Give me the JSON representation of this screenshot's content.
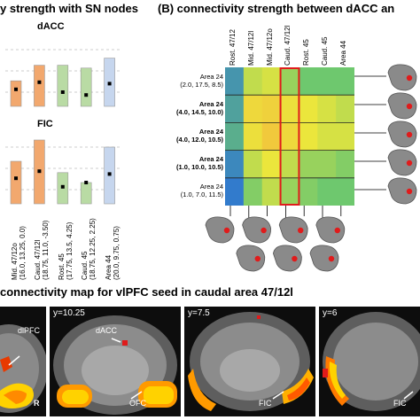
{
  "panel_a": {
    "title": "y strength with SN nodes",
    "charts": [
      {
        "label": "dACC",
        "bars": [
          0.18,
          0.29,
          0.29,
          0.27,
          0.34
        ],
        "dots": [
          0.12,
          0.17,
          0.1,
          0.08,
          0.16
        ]
      },
      {
        "label": "FIC",
        "bars": [
          0.3,
          0.45,
          0.22,
          0.15,
          0.4
        ],
        "dots": [
          0.18,
          0.23,
          0.12,
          0.15,
          0.21
        ]
      }
    ],
    "bar_colors": [
      "#f2a86e",
      "#f2a86e",
      "#b9dba4",
      "#b9dba4",
      "#c6d6ee"
    ],
    "categories": [
      "Mid. 47/12o\n(16.0, 13.25, 0.0)",
      "Caud. 47/12l\n(18.75, 11.0, -3.50)",
      "Rost. 45\n(17.75, 13.5, 4.25)",
      "Caud. 45\n(18.75, 12.25, 2.25)",
      "Area 44\n(20.0, 9.75, 0.75)"
    ]
  },
  "panel_b": {
    "title": "(B) connectivity strength between dACC an",
    "columns": [
      "Rost. 47/12",
      "Mid. 47/12l",
      "Mid. 47/12o",
      "Caud. 47/12l",
      "Rost. 45",
      "Caud. 45",
      "Area 44"
    ],
    "rows": [
      {
        "name": "Area 24",
        "coords": "(2.0, 17.5, 8.5)",
        "bold": false
      },
      {
        "name": "Area 24",
        "coords": "(4.0, 14.5, 10.0)",
        "bold": true
      },
      {
        "name": "Area 24",
        "coords": "(4.0, 12.0, 10.5)",
        "bold": true
      },
      {
        "name": "Area 24",
        "coords": "(1.0, 10.0, 10.5)",
        "bold": true
      },
      {
        "name": "Area 24",
        "coords": "(1.0, 7.0, 11.5)",
        "bold": false
      }
    ],
    "matrix": [
      [
        0.15,
        0.55,
        0.6,
        0.45,
        0.35,
        0.35,
        0.35
      ],
      [
        0.2,
        0.75,
        0.8,
        0.7,
        0.65,
        0.6,
        0.55
      ],
      [
        0.25,
        0.7,
        0.85,
        0.75,
        0.65,
        0.6,
        0.6
      ],
      [
        0.1,
        0.55,
        0.65,
        0.55,
        0.45,
        0.45,
        0.4
      ],
      [
        0.05,
        0.4,
        0.55,
        0.45,
        0.4,
        0.35,
        0.35
      ]
    ],
    "highlight_color": "#e01b1b"
  },
  "panel_c": {
    "title": "connectivity map for vlPFC seed in caudal area 47/12l",
    "slices": [
      {
        "y": "",
        "labels": [
          "dlPFC",
          "R"
        ]
      },
      {
        "y": "y=10.25",
        "labels": [
          "dACC",
          "OFC"
        ]
      },
      {
        "y": "y=7.5",
        "labels": [
          "FIC"
        ]
      },
      {
        "y": "y=6",
        "labels": [
          "FIC"
        ]
      }
    ]
  }
}
